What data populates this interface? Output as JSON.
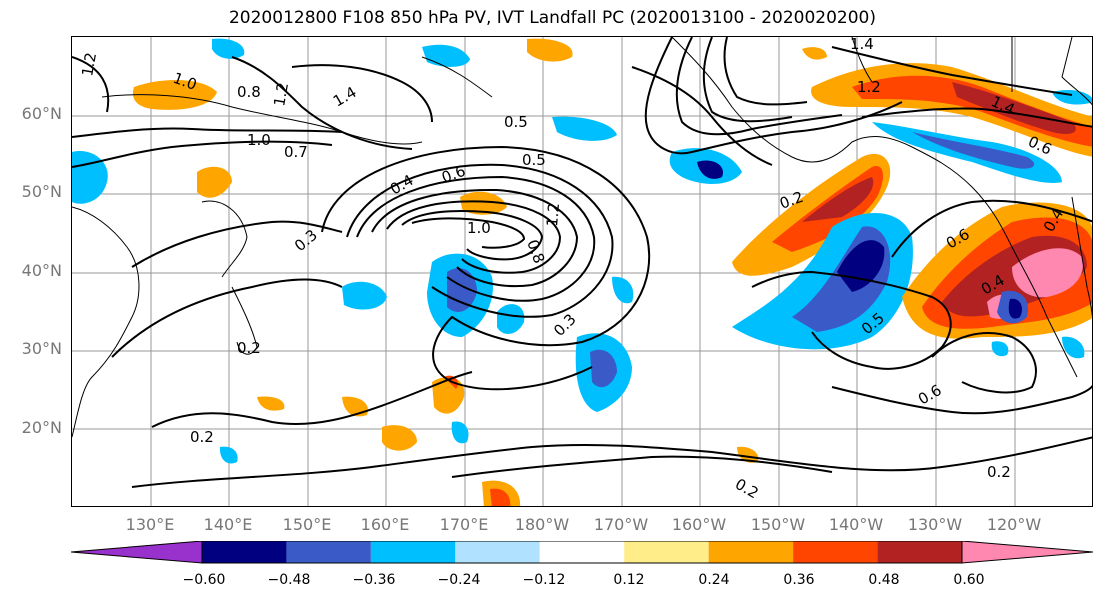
{
  "title": "2020012800 F108 850 hPa PV, IVT Landfall PC (2020013100 - 2020020200)",
  "lat_labels": [
    "60°N",
    "50°N",
    "40°N",
    "30°N",
    "20°N"
  ],
  "lon_labels": [
    "130°E",
    "140°E",
    "150°E",
    "160°E",
    "170°E",
    "180°W",
    "170°W",
    "160°W",
    "150°W",
    "140°W",
    "130°W",
    "120°W"
  ],
  "contour_labels": [
    "1.2",
    "1.0",
    "0.8",
    "1.2",
    "0.7",
    "1.4",
    "1.0",
    "0.5",
    "0.5",
    "0.4",
    "0.6",
    "1.0",
    "0.8",
    "1.2",
    "0.3",
    "0.2",
    "0.3",
    "0.2",
    "0.5",
    "0.6",
    "0.2",
    "0.2",
    "0.2",
    "0.6",
    "0.4",
    "0.4",
    "1.4",
    "1.2",
    "1.4",
    "0.6"
  ],
  "colorbar": {
    "ticks": [
      "−0.60",
      "−0.48",
      "−0.36",
      "−0.24",
      "−0.12",
      "0.12",
      "0.24",
      "0.36",
      "0.48",
      "0.60"
    ],
    "colors": [
      "#9932cc",
      "#000080",
      "#3a5bc7",
      "#00bfff",
      "#b0e2ff",
      "#ffffff",
      "#ffed8a",
      "#ffa500",
      "#ff4500",
      "#b22222",
      "#ff88b0"
    ]
  }
}
